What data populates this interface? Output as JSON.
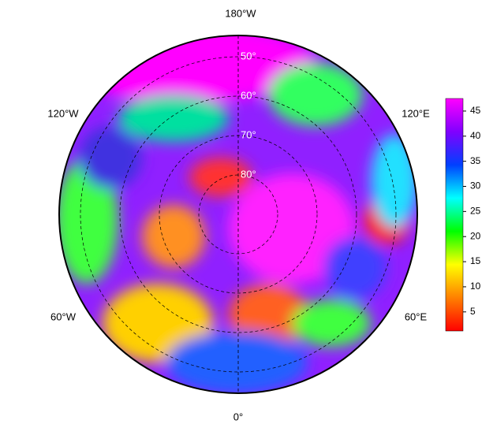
{
  "map": {
    "longitude_labels": [
      "180°W",
      "120°W",
      "120°E",
      "60°W",
      "60°E",
      "0°"
    ],
    "latitude_labels": [
      {
        "value": 50,
        "label": "50°"
      },
      {
        "value": 60,
        "label": "60°"
      },
      {
        "value": 70,
        "label": "70°"
      },
      {
        "value": 80,
        "label": "80°"
      }
    ]
  },
  "colorbar": {
    "range": [
      1.2,
      47.5
    ],
    "ticks": [
      5,
      10,
      15,
      20,
      25,
      30,
      35,
      40,
      45
    ],
    "colors": [
      "#ff0000",
      "#ff8000",
      "#ffff00",
      "#00ff00",
      "#00ffff",
      "#0040ff",
      "#8000ff",
      "#ff00ff"
    ]
  }
}
